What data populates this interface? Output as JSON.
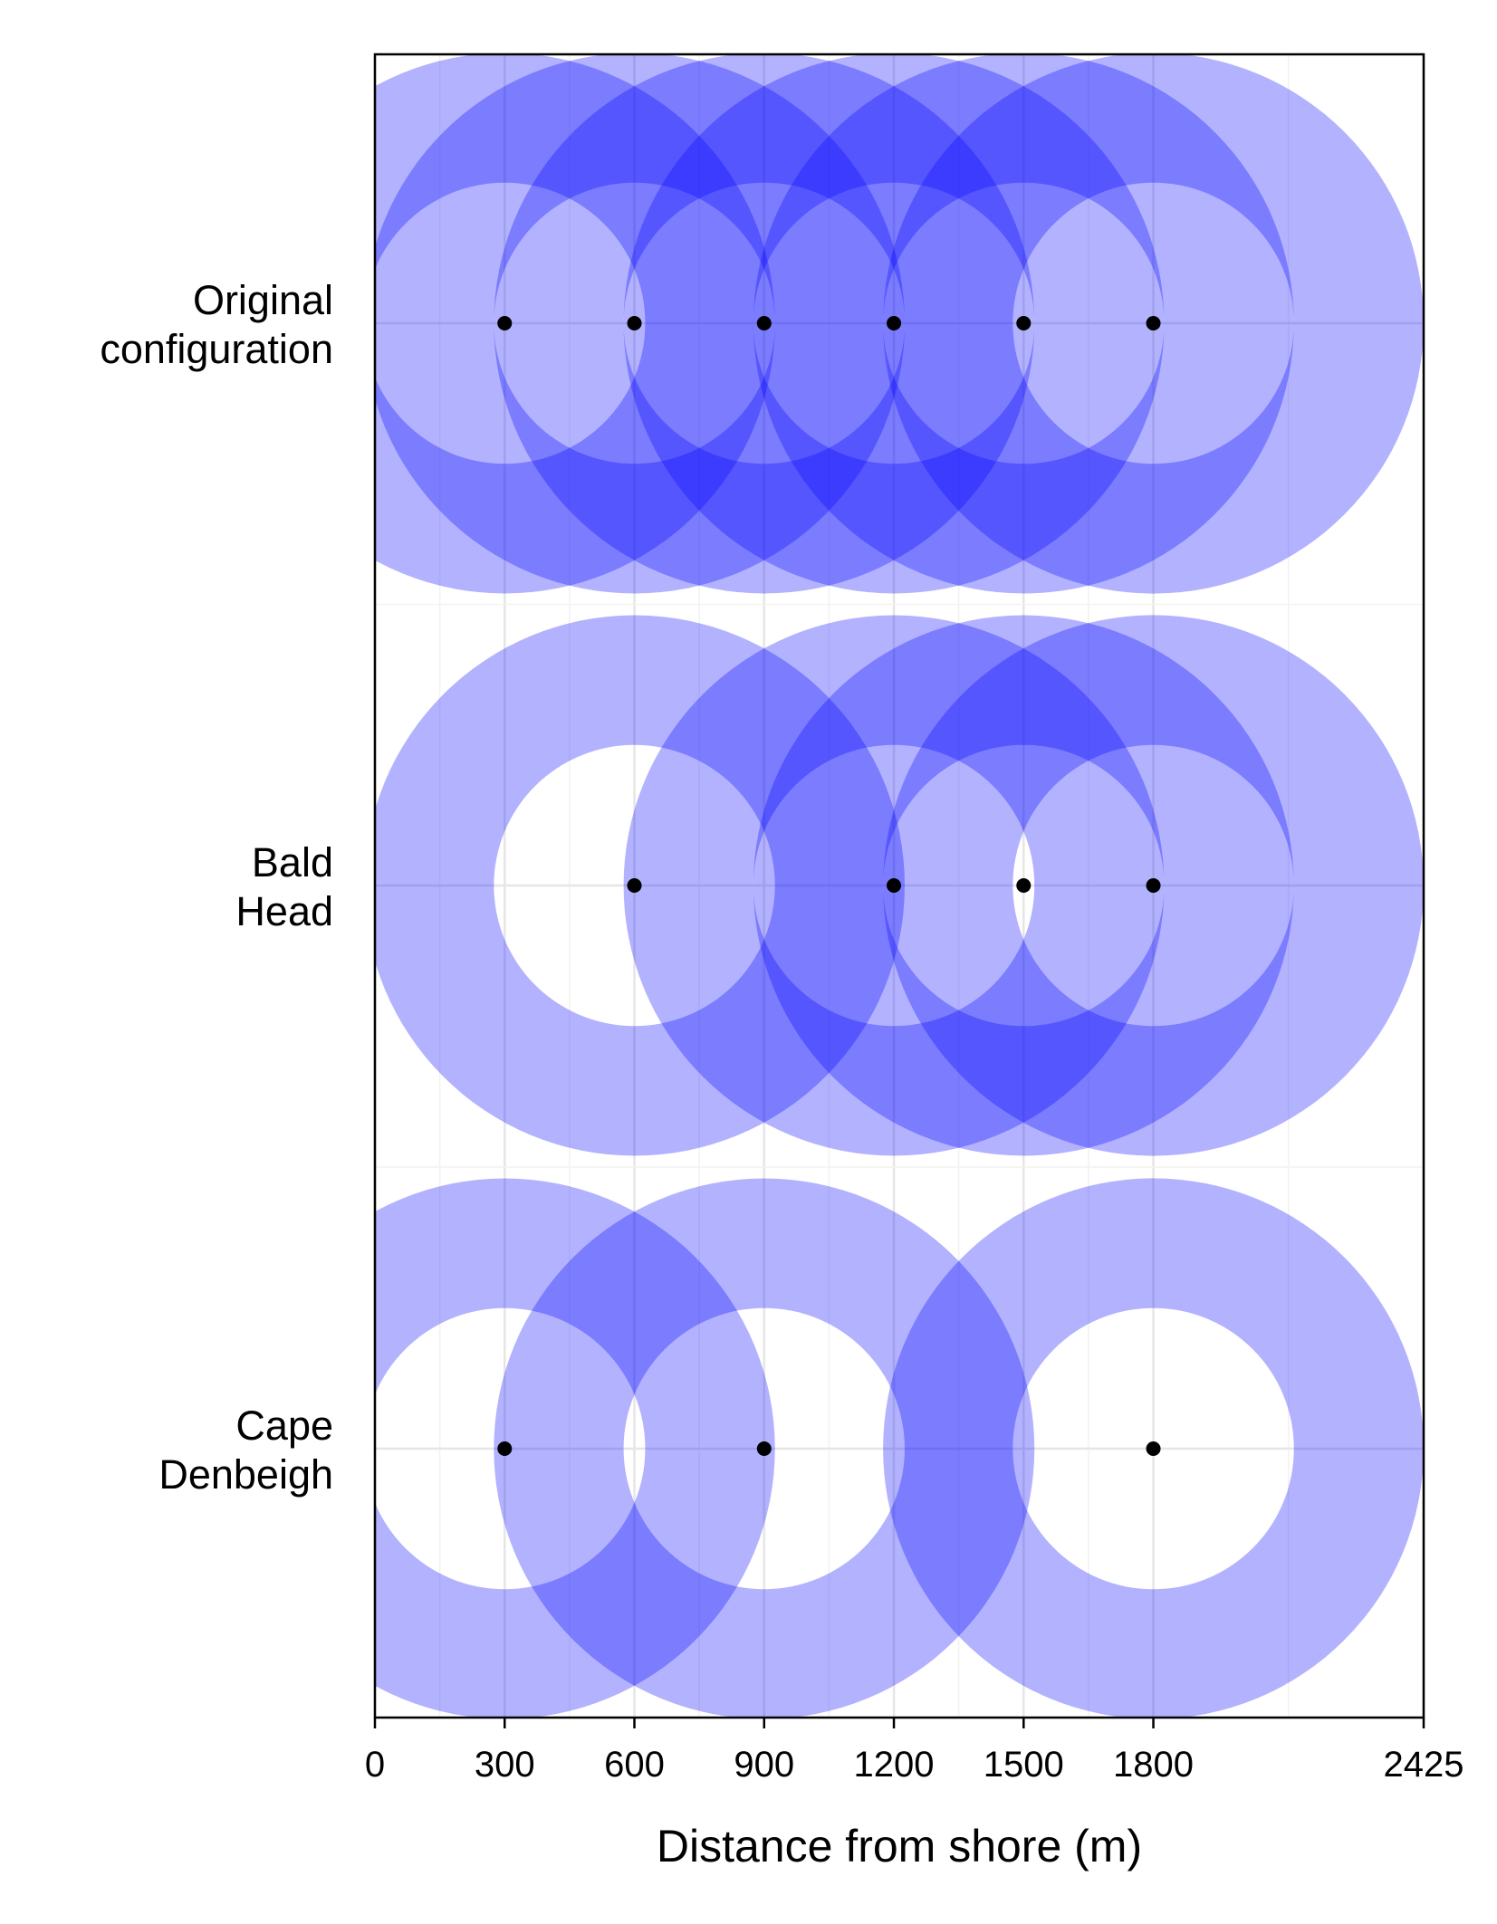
{
  "chart_data": {
    "type": "scatter",
    "xlabel": "Distance from shore (m)",
    "xlim": [
      0,
      2425
    ],
    "x_ticks": [
      0,
      300,
      600,
      900,
      1200,
      1500,
      1800,
      2425
    ],
    "x_tick_labels": [
      "0",
      "300",
      "600",
      "900",
      "1200",
      "1500",
      "1800",
      "2425"
    ],
    "x_minor_gridlines": [
      150,
      450,
      750,
      1050,
      1350,
      1650,
      2112.5
    ],
    "ring_inner_radius_m": 325,
    "ring_outer_radius_m": 625,
    "ring_color": "#0000ff",
    "ring_opacity": 0.3,
    "point_color": "#000000",
    "grid": true,
    "categories": [
      "Original configuration",
      "Bald Head",
      "Cape Denbeigh"
    ],
    "category_label_lines": [
      [
        "Original",
        "configuration"
      ],
      [
        "Bald",
        "Head"
      ],
      [
        "Cape",
        "Denbeigh"
      ]
    ],
    "series": [
      {
        "category": "Original configuration",
        "x": [
          300,
          600,
          900,
          1200,
          1500,
          1800
        ]
      },
      {
        "category": "Bald Head",
        "x": [
          600,
          1200,
          1500,
          1800
        ]
      },
      {
        "category": "Cape Denbeigh",
        "x": [
          300,
          900,
          1800
        ]
      }
    ]
  }
}
